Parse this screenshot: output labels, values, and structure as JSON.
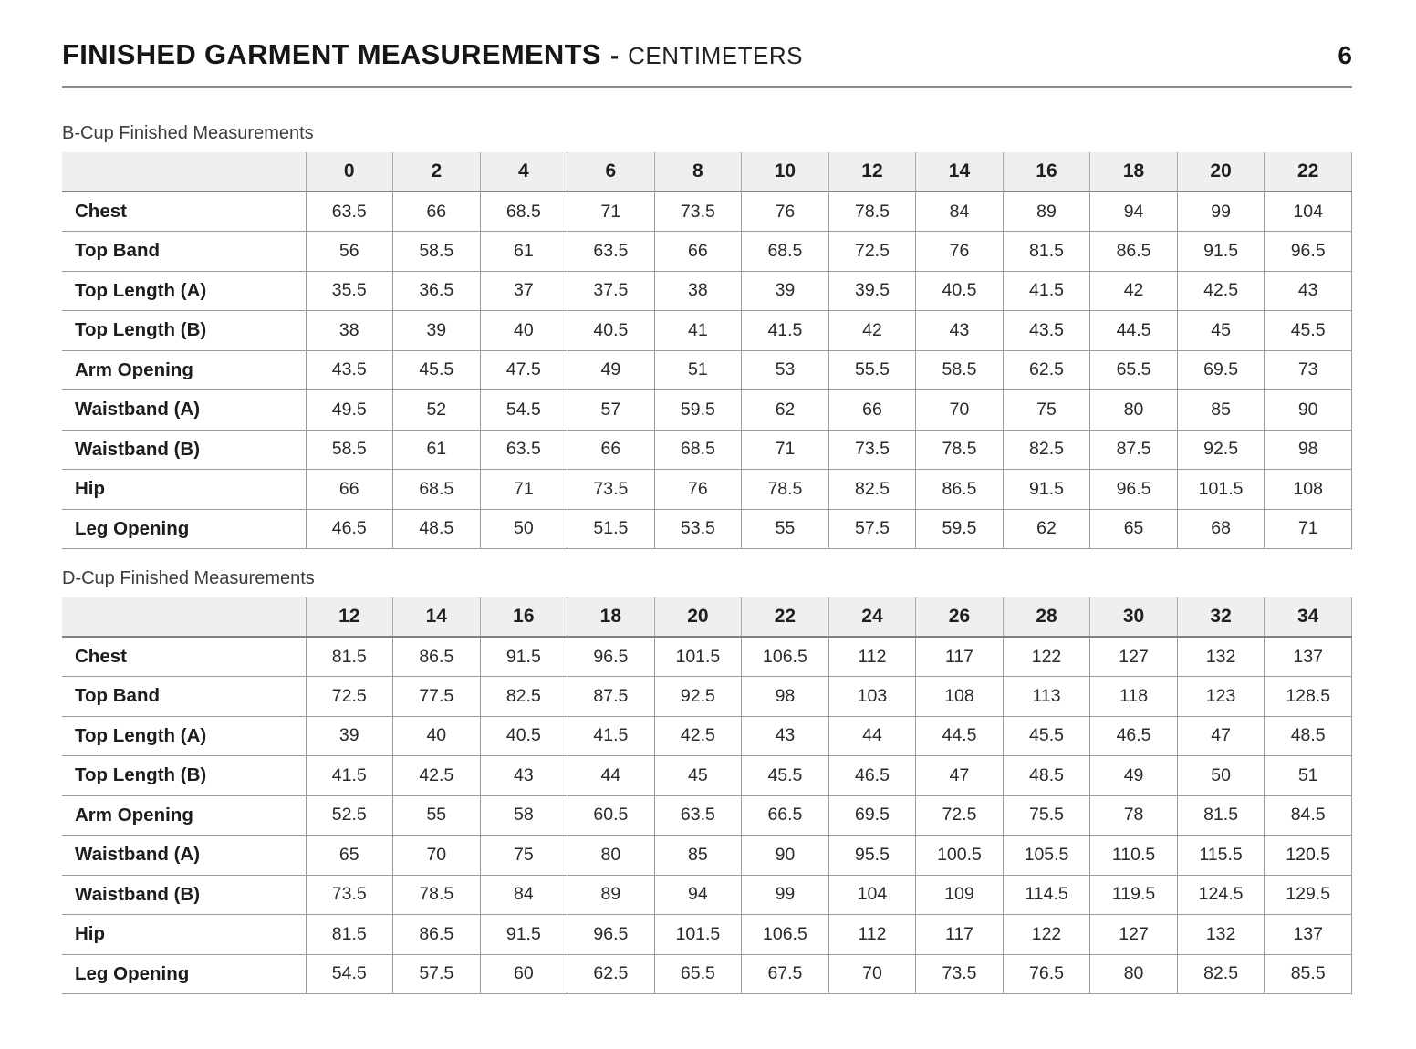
{
  "page": {
    "title": "FINISHED GARMENT MEASUREMENTS",
    "separator": "-",
    "unit_label": "CENTIMETERS",
    "page_number": "6"
  },
  "colors": {
    "header_bg": "#efefef",
    "table_border": "#9b9b9b",
    "header_bottom_border": "#818181",
    "title_rule": "#8c8c8c",
    "text": "#1f1f1f"
  },
  "tables": [
    {
      "caption": "B-Cup Finished Measurements",
      "columns": [
        "0",
        "2",
        "4",
        "6",
        "8",
        "10",
        "12",
        "14",
        "16",
        "18",
        "20",
        "22"
      ],
      "rows": [
        {
          "label": "Chest",
          "values": [
            "63.5",
            "66",
            "68.5",
            "71",
            "73.5",
            "76",
            "78.5",
            "84",
            "89",
            "94",
            "99",
            "104"
          ]
        },
        {
          "label": "Top Band",
          "values": [
            "56",
            "58.5",
            "61",
            "63.5",
            "66",
            "68.5",
            "72.5",
            "76",
            "81.5",
            "86.5",
            "91.5",
            "96.5"
          ]
        },
        {
          "label": "Top Length (A)",
          "values": [
            "35.5",
            "36.5",
            "37",
            "37.5",
            "38",
            "39",
            "39.5",
            "40.5",
            "41.5",
            "42",
            "42.5",
            "43"
          ]
        },
        {
          "label": "Top Length (B)",
          "values": [
            "38",
            "39",
            "40",
            "40.5",
            "41",
            "41.5",
            "42",
            "43",
            "43.5",
            "44.5",
            "45",
            "45.5"
          ]
        },
        {
          "label": "Arm Opening",
          "values": [
            "43.5",
            "45.5",
            "47.5",
            "49",
            "51",
            "53",
            "55.5",
            "58.5",
            "62.5",
            "65.5",
            "69.5",
            "73"
          ]
        },
        {
          "label": "Waistband (A)",
          "values": [
            "49.5",
            "52",
            "54.5",
            "57",
            "59.5",
            "62",
            "66",
            "70",
            "75",
            "80",
            "85",
            "90"
          ]
        },
        {
          "label": "Waistband (B)",
          "values": [
            "58.5",
            "61",
            "63.5",
            "66",
            "68.5",
            "71",
            "73.5",
            "78.5",
            "82.5",
            "87.5",
            "92.5",
            "98"
          ]
        },
        {
          "label": "Hip",
          "values": [
            "66",
            "68.5",
            "71",
            "73.5",
            "76",
            "78.5",
            "82.5",
            "86.5",
            "91.5",
            "96.5",
            "101.5",
            "108"
          ]
        },
        {
          "label": "Leg Opening",
          "values": [
            "46.5",
            "48.5",
            "50",
            "51.5",
            "53.5",
            "55",
            "57.5",
            "59.5",
            "62",
            "65",
            "68",
            "71"
          ]
        }
      ]
    },
    {
      "caption": "D-Cup Finished Measurements",
      "columns": [
        "12",
        "14",
        "16",
        "18",
        "20",
        "22",
        "24",
        "26",
        "28",
        "30",
        "32",
        "34"
      ],
      "rows": [
        {
          "label": "Chest",
          "values": [
            "81.5",
            "86.5",
            "91.5",
            "96.5",
            "101.5",
            "106.5",
            "112",
            "117",
            "122",
            "127",
            "132",
            "137"
          ]
        },
        {
          "label": "Top Band",
          "values": [
            "72.5",
            "77.5",
            "82.5",
            "87.5",
            "92.5",
            "98",
            "103",
            "108",
            "113",
            "118",
            "123",
            "128.5"
          ]
        },
        {
          "label": "Top Length (A)",
          "values": [
            "39",
            "40",
            "40.5",
            "41.5",
            "42.5",
            "43",
            "44",
            "44.5",
            "45.5",
            "46.5",
            "47",
            "48.5"
          ]
        },
        {
          "label": "Top Length (B)",
          "values": [
            "41.5",
            "42.5",
            "43",
            "44",
            "45",
            "45.5",
            "46.5",
            "47",
            "48.5",
            "49",
            "50",
            "51"
          ]
        },
        {
          "label": "Arm Opening",
          "values": [
            "52.5",
            "55",
            "58",
            "60.5",
            "63.5",
            "66.5",
            "69.5",
            "72.5",
            "75.5",
            "78",
            "81.5",
            "84.5"
          ]
        },
        {
          "label": "Waistband (A)",
          "values": [
            "65",
            "70",
            "75",
            "80",
            "85",
            "90",
            "95.5",
            "100.5",
            "105.5",
            "110.5",
            "115.5",
            "120.5"
          ]
        },
        {
          "label": "Waistband (B)",
          "values": [
            "73.5",
            "78.5",
            "84",
            "89",
            "94",
            "99",
            "104",
            "109",
            "114.5",
            "119.5",
            "124.5",
            "129.5"
          ]
        },
        {
          "label": "Hip",
          "values": [
            "81.5",
            "86.5",
            "91.5",
            "96.5",
            "101.5",
            "106.5",
            "112",
            "117",
            "122",
            "127",
            "132",
            "137"
          ]
        },
        {
          "label": "Leg Opening",
          "values": [
            "54.5",
            "57.5",
            "60",
            "62.5",
            "65.5",
            "67.5",
            "70",
            "73.5",
            "76.5",
            "80",
            "82.5",
            "85.5"
          ]
        }
      ]
    }
  ]
}
